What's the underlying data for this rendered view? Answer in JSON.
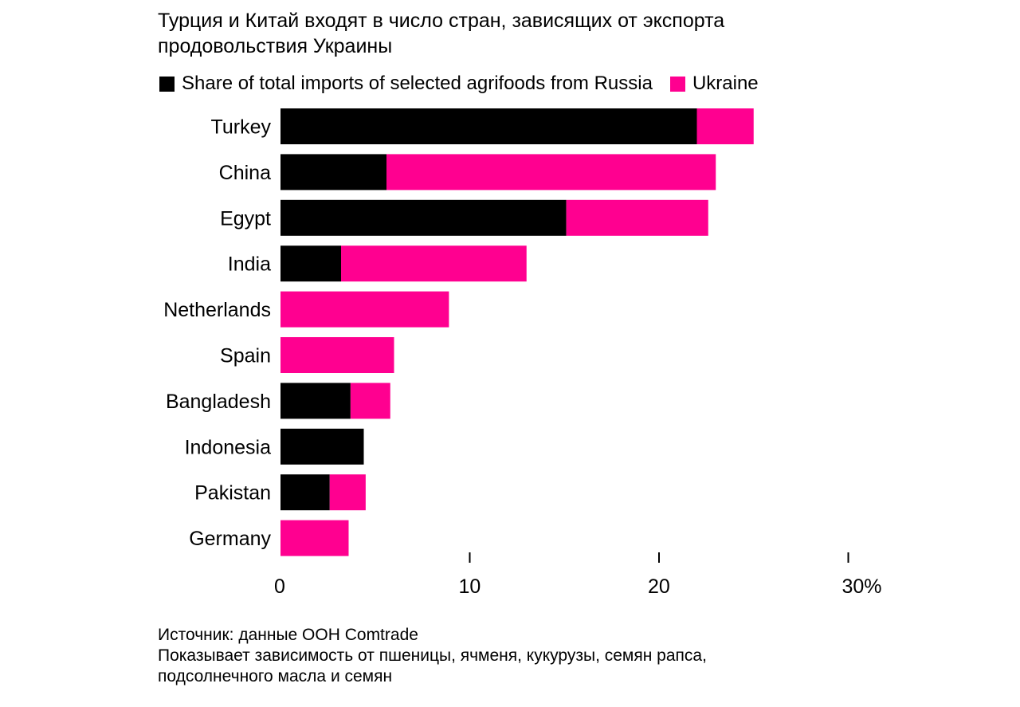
{
  "title_lines": [
    "Турция и Китай входят в число стран, зависящих от экспорта",
    "продовольствия Украины"
  ],
  "footnote_lines": [
    "Источник: данные ООН Comtrade",
    "Показывает зависимость от пшеницы, ячменя, кукурузы, семян рапса,",
    "подсолнечного масла и семян"
  ],
  "colors": {
    "russia": "#000000",
    "ukraine": "#ff0090"
  },
  "chart_data": {
    "type": "bar",
    "orientation": "horizontal",
    "stacked": true,
    "title": "Турция и Китай входят в число стран, зависящих от экспорта продовольствия Украины",
    "categories": [
      "Turkey",
      "China",
      "Egypt",
      "India",
      "Netherlands",
      "Spain",
      "Bangladesh",
      "Indonesia",
      "Pakistan",
      "Germany"
    ],
    "series": [
      {
        "name": "Share of total imports of selected agrifoods from Russia",
        "color": "#000000",
        "values": [
          22.0,
          5.6,
          15.1,
          3.2,
          0,
          0,
          3.7,
          4.4,
          2.6,
          0
        ]
      },
      {
        "name": "Ukraine",
        "color": "#ff0090",
        "values": [
          3.0,
          17.4,
          7.5,
          9.8,
          8.9,
          6.0,
          2.1,
          0,
          1.9,
          3.6
        ]
      }
    ],
    "xlim": [
      0,
      30
    ],
    "xticks": [
      0,
      10,
      20,
      30
    ],
    "xtick_labels": [
      "0",
      "10",
      "20",
      "30%"
    ],
    "xlabel": "",
    "ylabel": "",
    "grid": false,
    "legend": "top-left"
  }
}
